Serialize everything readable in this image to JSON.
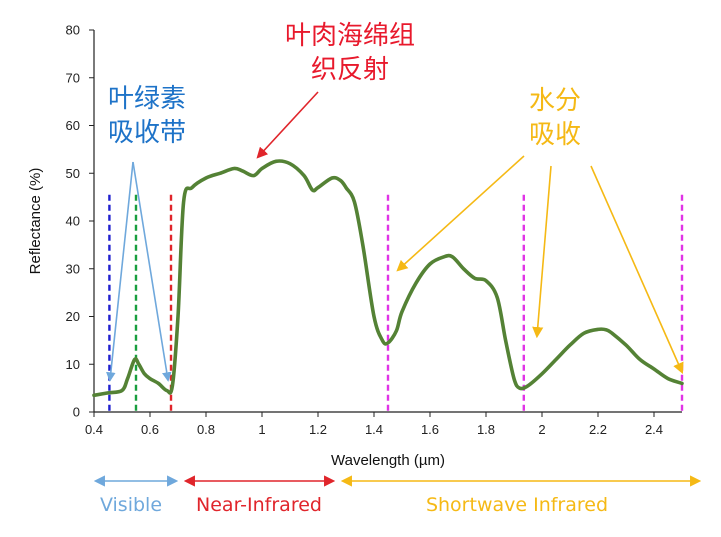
{
  "chart_data": {
    "type": "line",
    "title": "",
    "xlabel": "Wavelength (µm)",
    "ylabel": "Reflectance (%)",
    "xlim": [
      0.4,
      2.5
    ],
    "ylim": [
      0,
      80
    ],
    "xticks": [
      0.4,
      0.6,
      0.8,
      1,
      1.2,
      1.4,
      1.6,
      1.8,
      2,
      2.2,
      2.4
    ],
    "xtick_labels": [
      "0.4",
      "0.6",
      "0.8",
      "1",
      "1.2",
      "1.4",
      "1.6",
      "1.8",
      "2",
      "2.2",
      "2.4"
    ],
    "yticks": [
      0,
      10,
      20,
      30,
      40,
      50,
      60,
      70,
      80
    ],
    "ytick_labels": [
      "0",
      "10",
      "20",
      "30",
      "40",
      "50",
      "60",
      "70",
      "80"
    ],
    "grid": false,
    "series": [
      {
        "color": "#548235",
        "x": [
          0.4,
          0.45,
          0.5,
          0.52,
          0.545,
          0.56,
          0.58,
          0.6,
          0.63,
          0.66,
          0.68,
          0.7,
          0.72,
          0.75,
          0.8,
          0.85,
          0.9,
          0.93,
          0.97,
          1.0,
          1.05,
          1.1,
          1.15,
          1.18,
          1.2,
          1.25,
          1.28,
          1.3,
          1.33,
          1.36,
          1.4,
          1.43,
          1.45,
          1.48,
          1.5,
          1.55,
          1.6,
          1.65,
          1.68,
          1.72,
          1.76,
          1.8,
          1.84,
          1.87,
          1.9,
          1.92,
          1.95,
          2.0,
          2.05,
          2.1,
          2.15,
          2.2,
          2.23,
          2.25,
          2.3,
          2.35,
          2.4,
          2.45,
          2.5
        ],
        "values": [
          3.5,
          4,
          4.5,
          7,
          11,
          10,
          8,
          7,
          6,
          4.5,
          5.5,
          20,
          44,
          47,
          49,
          50,
          51,
          50.5,
          49.5,
          51,
          52.5,
          52,
          49.5,
          46.5,
          47,
          49,
          48.5,
          47,
          44,
          35,
          20,
          15,
          14.5,
          17,
          21,
          27,
          31,
          32.5,
          32.5,
          30,
          28,
          27.5,
          24,
          15,
          7,
          5,
          5.5,
          8,
          11,
          14,
          16.5,
          17.3,
          17.2,
          16.5,
          14,
          11,
          9,
          7,
          6
        ]
      }
    ],
    "vlines": [
      {
        "x": 0.455,
        "color": "#1f1fcf"
      },
      {
        "x": 0.55,
        "color": "#1a9e3f"
      },
      {
        "x": 0.675,
        "color": "#e0252b"
      },
      {
        "x": 1.45,
        "color": "#e033e6"
      },
      {
        "x": 1.935,
        "color": "#e033e6"
      },
      {
        "x": 2.5,
        "color": "#e033e6"
      }
    ],
    "annotations": [
      {
        "id": "chlorophyll",
        "lines": [
          "叶绿素",
          "吸收带"
        ],
        "color": "#1e73c8"
      },
      {
        "id": "mesophyll",
        "lines": [
          "叶肉海绵组",
          "织反射"
        ],
        "color": "#e8192c"
      },
      {
        "id": "water",
        "lines": [
          "水分",
          "吸收"
        ],
        "color": "#f5b915"
      }
    ],
    "regions": [
      {
        "id": "visible",
        "label": "Visible",
        "color": "#6fa8dc"
      },
      {
        "id": "nir",
        "label": "Near-Infrared",
        "color": "#e0252b"
      },
      {
        "id": "swir",
        "label": "Shortwave Infrared",
        "color": "#f5b915"
      }
    ]
  }
}
